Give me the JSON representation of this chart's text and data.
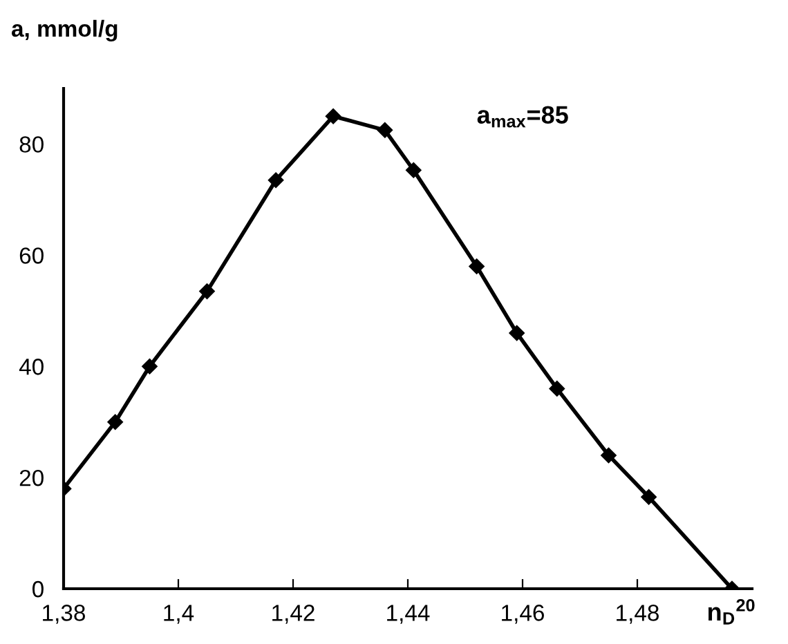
{
  "chart_data": {
    "type": "line",
    "ylabel": "a, mmol/g",
    "xlabel": "n$_{D}$$^{20}$",
    "annotations": [
      "a$_{max}$=85"
    ],
    "x": [
      1.38,
      1.389,
      1.395,
      1.405,
      1.417,
      1.427,
      1.436,
      1.441,
      1.452,
      1.459,
      1.466,
      1.475,
      1.482,
      1.4965
    ],
    "series": [
      {
        "color": "#000000",
        "values": [
          18,
          30,
          40,
          53.5,
          73.5,
          85,
          82.5,
          75.3,
          58,
          46,
          36,
          24,
          16.5,
          0
        ]
      }
    ],
    "xlim": [
      1.38,
      1.5
    ],
    "xticks": [
      {
        "value": 1.38,
        "label": "1,38"
      },
      {
        "value": 1.4,
        "label": "1,4"
      },
      {
        "value": 1.42,
        "label": "1,42"
      },
      {
        "value": 1.44,
        "label": "1,44"
      },
      {
        "value": 1.46,
        "label": "1,46"
      },
      {
        "value": 1.48,
        "label": "1,48"
      }
    ],
    "ylim": [
      0,
      90
    ],
    "yticks": [
      0,
      20,
      40,
      60,
      80
    ],
    "grid": false,
    "legend": false,
    "marker": "diamond",
    "line_style": "solid"
  }
}
